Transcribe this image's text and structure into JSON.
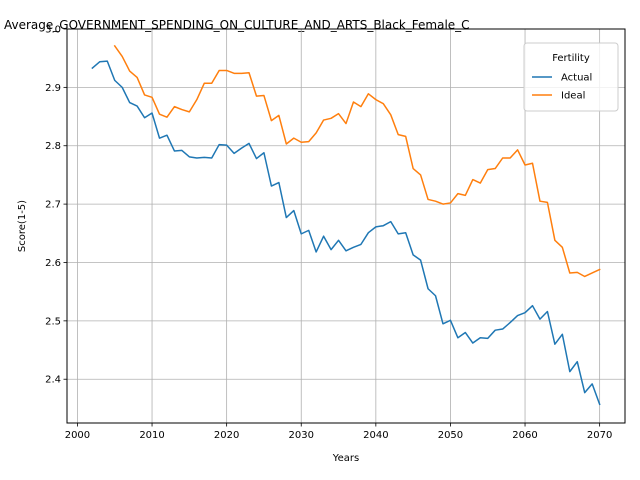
{
  "chart_data": {
    "type": "line",
    "title": "Average_GOVERNMENT_SPENDING_ON_CULTURE_AND_ARTS_Black_Female_C",
    "xlabel": "Years",
    "ylabel": "Score(1-5)",
    "xlim": [
      1998.6,
      2073.4
    ],
    "ylim": [
      2.325,
      3.0
    ],
    "xticks": [
      2000,
      2010,
      2020,
      2030,
      2040,
      2050,
      2060,
      2070
    ],
    "yticks": [
      2.4,
      2.5,
      2.6,
      2.7,
      2.8,
      2.9,
      3.0
    ],
    "xtick_labels": [
      "2000",
      "2010",
      "2020",
      "2030",
      "2040",
      "2050",
      "2060",
      "2070"
    ],
    "ytick_labels": [
      "2.4",
      "2.5",
      "2.6",
      "2.7",
      "2.8",
      "2.9",
      "3.0"
    ],
    "grid": true,
    "legend": {
      "title": "Fertility",
      "placement": "top-right"
    },
    "series": [
      {
        "name": "Actual",
        "color": "#1f77b4",
        "x": [
          2002,
          2003,
          2004,
          2005,
          2006,
          2007,
          2008,
          2009,
          2010,
          2011,
          2012,
          2013,
          2014,
          2015,
          2016,
          2017,
          2018,
          2019,
          2020,
          2021,
          2022,
          2023,
          2024,
          2025,
          2026,
          2027,
          2028,
          2029,
          2030,
          2031,
          2032,
          2033,
          2034,
          2035,
          2036,
          2037,
          2038,
          2039,
          2040,
          2041,
          2042,
          2043,
          2044,
          2045,
          2046,
          2047,
          2048,
          2049,
          2050,
          2051,
          2052,
          2053,
          2054,
          2055,
          2056,
          2057,
          2058,
          2059,
          2060,
          2061,
          2062,
          2063,
          2064,
          2065,
          2066,
          2067,
          2068,
          2069,
          2070
        ],
        "values": [
          2.933,
          2.944,
          2.945,
          2.912,
          2.9,
          2.874,
          2.868,
          2.848,
          2.856,
          2.813,
          2.818,
          2.791,
          2.792,
          2.781,
          2.779,
          2.78,
          2.779,
          2.802,
          2.801,
          2.787,
          2.796,
          2.804,
          2.778,
          2.788,
          2.731,
          2.737,
          2.677,
          2.689,
          2.649,
          2.655,
          2.618,
          2.645,
          2.622,
          2.638,
          2.62,
          2.626,
          2.631,
          2.651,
          2.661,
          2.663,
          2.67,
          2.649,
          2.651,
          2.613,
          2.604,
          2.555,
          2.543,
          2.495,
          2.501,
          2.471,
          2.48,
          2.462,
          2.471,
          2.47,
          2.484,
          2.486,
          2.497,
          2.509,
          2.514,
          2.526,
          2.503,
          2.516,
          2.46,
          2.477,
          2.413,
          2.43,
          2.377,
          2.392,
          2.357
        ]
      },
      {
        "name": "Ideal",
        "color": "#ff7f0e",
        "x": [
          2005,
          2006,
          2007,
          2008,
          2009,
          2010,
          2011,
          2012,
          2013,
          2014,
          2015,
          2016,
          2017,
          2018,
          2019,
          2020,
          2021,
          2022,
          2023,
          2024,
          2025,
          2026,
          2027,
          2028,
          2029,
          2030,
          2031,
          2032,
          2033,
          2034,
          2035,
          2036,
          2037,
          2038,
          2039,
          2040,
          2041,
          2042,
          2043,
          2044,
          2045,
          2046,
          2047,
          2048,
          2049,
          2050,
          2051,
          2052,
          2053,
          2054,
          2055,
          2056,
          2057,
          2058,
          2059,
          2060,
          2061,
          2062,
          2063,
          2064,
          2065,
          2066,
          2067,
          2068,
          2069,
          2070
        ],
        "values": [
          2.971,
          2.953,
          2.928,
          2.917,
          2.887,
          2.883,
          2.854,
          2.849,
          2.867,
          2.862,
          2.858,
          2.879,
          2.907,
          2.907,
          2.929,
          2.929,
          2.924,
          2.924,
          2.925,
          2.885,
          2.886,
          2.843,
          2.852,
          2.803,
          2.813,
          2.806,
          2.807,
          2.822,
          2.844,
          2.847,
          2.855,
          2.838,
          2.875,
          2.867,
          2.889,
          2.879,
          2.872,
          2.853,
          2.819,
          2.816,
          2.761,
          2.75,
          2.708,
          2.705,
          2.7,
          2.702,
          2.718,
          2.715,
          2.742,
          2.736,
          2.759,
          2.761,
          2.779,
          2.779,
          2.793,
          2.767,
          2.77,
          2.705,
          2.703,
          2.638,
          2.626,
          2.582,
          2.583,
          2.576,
          2.582,
          2.588
        ]
      }
    ]
  }
}
